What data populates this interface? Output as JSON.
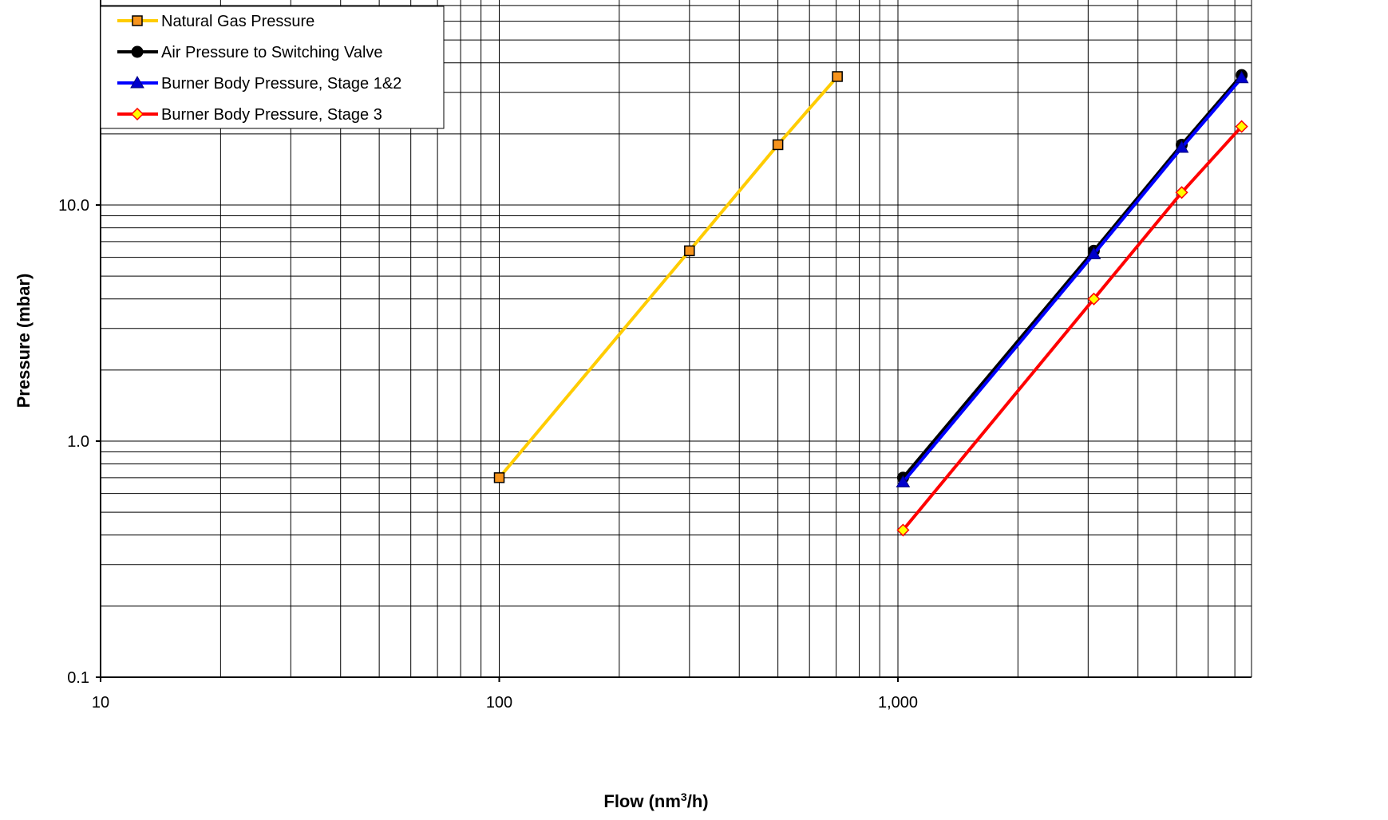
{
  "chart_data": {
    "type": "line",
    "xlabel_main": "Flow (nm",
    "xlabel_sup": "3",
    "xlabel_tail": "/h)",
    "ylabel": "Pressure (mbar)",
    "xscale": "log",
    "yscale": "log",
    "xlim": [
      10,
      7700
    ],
    "ylim": [
      0.1,
      60
    ],
    "grid": true,
    "legend_placement": "top-left",
    "x_tick_labels": [
      {
        "value": 10,
        "label": "10"
      },
      {
        "value": 100,
        "label": "100"
      },
      {
        "value": 1000,
        "label": "1,000"
      }
    ],
    "y_tick_labels": [
      {
        "value": 0.1,
        "label": "0.1"
      },
      {
        "value": 1,
        "label": "1.0"
      },
      {
        "value": 10,
        "label": "10.0"
      }
    ],
    "series": [
      {
        "name": "Natural Gas Pressure",
        "color": "#ffcc00",
        "marker": "square",
        "marker_fill": "#f7941d",
        "marker_stroke": "#000000",
        "x": [
          100,
          300,
          500,
          705
        ],
        "y": [
          0.7,
          6.4,
          18,
          35
        ]
      },
      {
        "name": "Air Pressure to Switching Valve",
        "color": "#000000",
        "marker": "circle",
        "marker_fill": "#000000",
        "marker_stroke": "#000000",
        "x": [
          1030,
          3100,
          5150,
          7280
        ],
        "y": [
          0.7,
          6.4,
          18,
          35.5
        ]
      },
      {
        "name": "Burner Body Pressure, Stage 1&2",
        "color": "#0000ff",
        "marker": "triangle",
        "marker_fill": "#0000cc",
        "marker_stroke": "#000080",
        "x": [
          1030,
          3100,
          5150,
          7280
        ],
        "y": [
          0.67,
          6.2,
          17.5,
          34.5
        ]
      },
      {
        "name": "Burner Body Pressure, Stage 3",
        "color": "#ff0000",
        "marker": "diamond",
        "marker_fill": "#ffff00",
        "marker_stroke": "#ff0000",
        "x": [
          1030,
          3100,
          5150,
          7280
        ],
        "y": [
          0.42,
          4.0,
          11.3,
          21.5
        ]
      }
    ]
  }
}
